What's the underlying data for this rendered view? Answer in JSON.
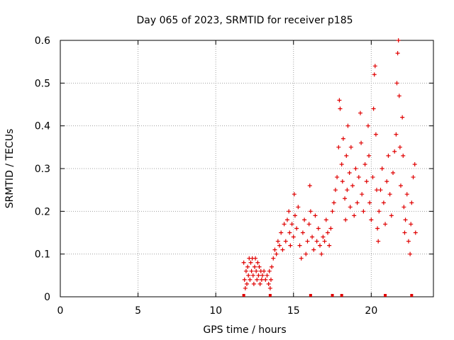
{
  "chart_data": {
    "type": "scatter",
    "title": "Day 065 of 2023, SRMTID for receiver p185",
    "xlabel": "GPS time / hours",
    "ylabel": "SRMTID / TECUs",
    "xlim": [
      0,
      24
    ],
    "ylim": [
      0,
      0.6
    ],
    "x_ticks": [
      0,
      5,
      10,
      15,
      20
    ],
    "x_tick_labels": [
      "0",
      "5",
      "10",
      "15",
      "20"
    ],
    "y_ticks": [
      0,
      0.1,
      0.2,
      0.3,
      0.4,
      0.5,
      0.6
    ],
    "y_tick_labels": [
      "0",
      "0.1",
      "0.2",
      "0.3",
      "0.4",
      "0.5",
      "0.6"
    ],
    "grid": true,
    "marker": "+",
    "series_color": "#e00000",
    "series": [
      {
        "name": "SRMTID",
        "points": [
          [
            11.8,
            0.08
          ],
          [
            11.85,
            0.04
          ],
          [
            11.9,
            0.02
          ],
          [
            11.95,
            0.06
          ],
          [
            12.0,
            0.03
          ],
          [
            12.05,
            0.07
          ],
          [
            12.1,
            0.05
          ],
          [
            12.15,
            0.09
          ],
          [
            12.2,
            0.04
          ],
          [
            12.25,
            0.08
          ],
          [
            12.3,
            0.06
          ],
          [
            12.35,
            0.09
          ],
          [
            12.4,
            0.05
          ],
          [
            12.45,
            0.03
          ],
          [
            12.5,
            0.07
          ],
          [
            12.55,
            0.09
          ],
          [
            12.6,
            0.06
          ],
          [
            12.65,
            0.04
          ],
          [
            12.7,
            0.08
          ],
          [
            12.75,
            0.05
          ],
          [
            12.8,
            0.07
          ],
          [
            12.85,
            0.03
          ],
          [
            12.9,
            0.06
          ],
          [
            12.95,
            0.04
          ],
          [
            13.0,
            0.05
          ],
          [
            13.1,
            0.06
          ],
          [
            13.2,
            0.04
          ],
          [
            13.3,
            0.05
          ],
          [
            13.4,
            0.03
          ],
          [
            13.45,
            0.06
          ],
          [
            13.5,
            0.02
          ],
          [
            13.55,
            0.04
          ],
          [
            13.6,
            0.07
          ],
          [
            13.7,
            0.09
          ],
          [
            13.8,
            0.11
          ],
          [
            13.9,
            0.1
          ],
          [
            14.0,
            0.13
          ],
          [
            14.1,
            0.12
          ],
          [
            14.2,
            0.15
          ],
          [
            14.3,
            0.11
          ],
          [
            14.4,
            0.17
          ],
          [
            14.5,
            0.13
          ],
          [
            14.6,
            0.18
          ],
          [
            14.7,
            0.2
          ],
          [
            14.75,
            0.15
          ],
          [
            14.8,
            0.12
          ],
          [
            14.9,
            0.17
          ],
          [
            15.0,
            0.14
          ],
          [
            15.05,
            0.24
          ],
          [
            15.1,
            0.19
          ],
          [
            15.2,
            0.16
          ],
          [
            15.3,
            0.21
          ],
          [
            15.4,
            0.12
          ],
          [
            15.5,
            0.09
          ],
          [
            15.6,
            0.15
          ],
          [
            15.7,
            0.18
          ],
          [
            15.8,
            0.1
          ],
          [
            15.9,
            0.13
          ],
          [
            16.0,
            0.17
          ],
          [
            16.05,
            0.26
          ],
          [
            16.1,
            0.2
          ],
          [
            16.2,
            0.14
          ],
          [
            16.3,
            0.11
          ],
          [
            16.4,
            0.19
          ],
          [
            16.5,
            0.13
          ],
          [
            16.6,
            0.16
          ],
          [
            16.7,
            0.12
          ],
          [
            16.8,
            0.1
          ],
          [
            16.9,
            0.14
          ],
          [
            17.0,
            0.13
          ],
          [
            17.1,
            0.18
          ],
          [
            17.2,
            0.15
          ],
          [
            17.3,
            0.12
          ],
          [
            17.4,
            0.16
          ],
          [
            17.5,
            0.2
          ],
          [
            17.6,
            0.22
          ],
          [
            17.7,
            0.25
          ],
          [
            17.8,
            0.28
          ],
          [
            17.9,
            0.35
          ],
          [
            17.95,
            0.46
          ],
          [
            18.0,
            0.44
          ],
          [
            18.1,
            0.31
          ],
          [
            18.15,
            0.27
          ],
          [
            18.2,
            0.37
          ],
          [
            18.3,
            0.23
          ],
          [
            18.35,
            0.18
          ],
          [
            18.4,
            0.33
          ],
          [
            18.45,
            0.25
          ],
          [
            18.5,
            0.4
          ],
          [
            18.6,
            0.29
          ],
          [
            18.65,
            0.21
          ],
          [
            18.7,
            0.35
          ],
          [
            18.8,
            0.26
          ],
          [
            18.9,
            0.19
          ],
          [
            19.0,
            0.3
          ],
          [
            19.1,
            0.22
          ],
          [
            19.2,
            0.28
          ],
          [
            19.3,
            0.43
          ],
          [
            19.35,
            0.36
          ],
          [
            19.4,
            0.24
          ],
          [
            19.5,
            0.2
          ],
          [
            19.6,
            0.31
          ],
          [
            19.7,
            0.27
          ],
          [
            19.8,
            0.4
          ],
          [
            19.85,
            0.33
          ],
          [
            19.9,
            0.22
          ],
          [
            20.0,
            0.18
          ],
          [
            20.1,
            0.28
          ],
          [
            20.15,
            0.44
          ],
          [
            20.2,
            0.52
          ],
          [
            20.25,
            0.54
          ],
          [
            20.3,
            0.38
          ],
          [
            20.35,
            0.25
          ],
          [
            20.4,
            0.16
          ],
          [
            20.45,
            0.13
          ],
          [
            20.5,
            0.2
          ],
          [
            20.6,
            0.25
          ],
          [
            20.7,
            0.3
          ],
          [
            20.8,
            0.22
          ],
          [
            20.9,
            0.17
          ],
          [
            21.0,
            0.27
          ],
          [
            21.1,
            0.33
          ],
          [
            21.2,
            0.24
          ],
          [
            21.3,
            0.19
          ],
          [
            21.4,
            0.29
          ],
          [
            21.5,
            0.34
          ],
          [
            21.6,
            0.38
          ],
          [
            21.65,
            0.5
          ],
          [
            21.7,
            0.57
          ],
          [
            21.75,
            0.6
          ],
          [
            21.8,
            0.47
          ],
          [
            21.85,
            0.35
          ],
          [
            21.9,
            0.26
          ],
          [
            22.0,
            0.42
          ],
          [
            22.05,
            0.33
          ],
          [
            22.1,
            0.21
          ],
          [
            22.15,
            0.15
          ],
          [
            22.2,
            0.18
          ],
          [
            22.3,
            0.24
          ],
          [
            22.4,
            0.13
          ],
          [
            22.5,
            0.1
          ],
          [
            22.55,
            0.17
          ],
          [
            22.6,
            0.22
          ],
          [
            22.7,
            0.28
          ],
          [
            22.8,
            0.31
          ],
          [
            22.85,
            0.15
          ]
        ]
      }
    ],
    "axis_markers_x": [
      11.8,
      13.5,
      16.1,
      17.5,
      18.1,
      20.9,
      22.6
    ]
  }
}
